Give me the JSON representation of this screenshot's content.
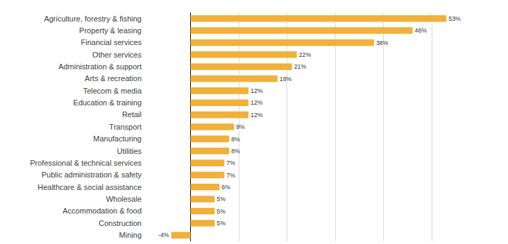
{
  "chart_data": {
    "type": "bar",
    "orientation": "horizontal",
    "categories": [
      "Agriculture, forestry & fishing",
      "Property & leasing",
      "Financial services",
      "Other services",
      "Administration & support",
      "Arts & recreation",
      "Telecom & media",
      "Education & training",
      "Retail",
      "Transport",
      "Manufacturing",
      "Utilities",
      "Professional & technical services",
      "Public administration & safety",
      "Healthcare & social assistance",
      "Wholesale",
      "Accommodation & food",
      "Construction",
      "Mining"
    ],
    "values": [
      53,
      46,
      38,
      22,
      21,
      18,
      12,
      12,
      12,
      9,
      8,
      8,
      7,
      7,
      6,
      5,
      5,
      5,
      -4
    ],
    "value_labels": [
      "53%",
      "46%",
      "38%",
      "22%",
      "21%",
      "18%",
      "12%",
      "12%",
      "12%",
      "9%",
      "8%",
      "8%",
      "7%",
      "7%",
      "6%",
      "5%",
      "5%",
      "5%",
      "-4%"
    ],
    "data_labels": true,
    "color": "#f0b03c",
    "xlim": [
      -10,
      60
    ],
    "xticks": [
      -10,
      0,
      10,
      20,
      30,
      40,
      50,
      60
    ],
    "grid": true,
    "tick_labels": "y"
  }
}
